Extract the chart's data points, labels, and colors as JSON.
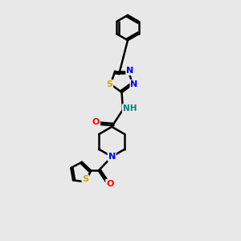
{
  "background_color": "#e8e8e8",
  "bond_color": "#000000",
  "atom_colors": {
    "N": "#0000ff",
    "O": "#ff0000",
    "S_thiadiazole": "#ccaa00",
    "S_thiophene": "#ccaa00",
    "NH": "#008080",
    "C": "#000000"
  },
  "figsize": [
    3.0,
    3.0
  ],
  "dpi": 100
}
